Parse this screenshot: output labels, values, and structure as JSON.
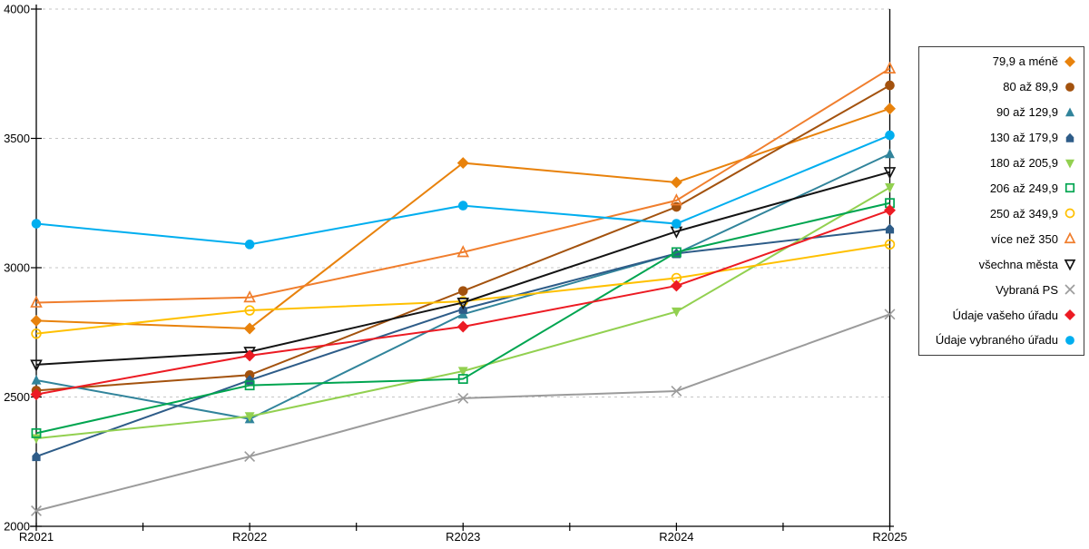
{
  "chart_data": {
    "type": "line",
    "title": "",
    "x_tick_labels": [
      "R2021",
      "R2022",
      "R2023",
      "R2024",
      "R2025"
    ],
    "y_tick_labels": [
      "2000",
      "2500",
      "3000",
      "3500",
      "4000"
    ],
    "ylim": [
      2000,
      4000
    ],
    "y_tick_step": 500,
    "grid": "horizontal-dashed",
    "legend_position": "right-outside",
    "axis_color": "#000000",
    "grid_color": "#C6C6C6",
    "series": [
      {
        "name": "79,9 a méně",
        "marker": "diamond",
        "color": "#E8820C",
        "values": [
          2795,
          2765,
          3405,
          3330,
          3615
        ]
      },
      {
        "name": "80 až 89,9",
        "marker": "circle",
        "color": "#A3520E",
        "values": [
          2525,
          2585,
          2910,
          3235,
          3705
        ]
      },
      {
        "name": "90 až 129,9",
        "marker": "triangle-up",
        "color": "#31849B",
        "values": [
          2565,
          2415,
          2820,
          3055,
          3440
        ]
      },
      {
        "name": "130 až 179,9",
        "marker": "pentagon",
        "color": "#2E5C88",
        "values": [
          2270,
          2565,
          2840,
          3055,
          3150
        ]
      },
      {
        "name": "180 až 205,9",
        "marker": "triangle-down",
        "color": "#92D050",
        "values": [
          2340,
          2425,
          2600,
          2830,
          3310
        ]
      },
      {
        "name": "206 až 249,9",
        "marker": "square-open",
        "color": "#00A550",
        "values": [
          2360,
          2545,
          2570,
          3060,
          3250
        ]
      },
      {
        "name": "250 až 349,9",
        "marker": "circle-open",
        "color": "#FFC000",
        "values": [
          2745,
          2835,
          2870,
          2960,
          3090
        ]
      },
      {
        "name": "více než 350",
        "marker": "triangle-up-open",
        "color": "#F07E2D",
        "values": [
          2865,
          2885,
          3060,
          3260,
          3770
        ]
      },
      {
        "name": "všechna města",
        "marker": "triangle-down-open",
        "color": "#141414",
        "values": [
          2625,
          2675,
          2865,
          3140,
          3370
        ]
      },
      {
        "name": "Vybraná PS",
        "marker": "x",
        "color": "#9B9B9B",
        "values": [
          2060,
          2270,
          2495,
          2523,
          2820
        ]
      },
      {
        "name": "Údaje vašeho úřadu",
        "marker": "diamond",
        "color": "#EC1B23",
        "values": [
          2510,
          2660,
          2772,
          2930,
          3222
        ]
      },
      {
        "name": "Údaje vybraného úřadu",
        "marker": "circle",
        "color": "#00AEEF",
        "values": [
          3170,
          3090,
          3240,
          3170,
          3512
        ]
      }
    ]
  }
}
